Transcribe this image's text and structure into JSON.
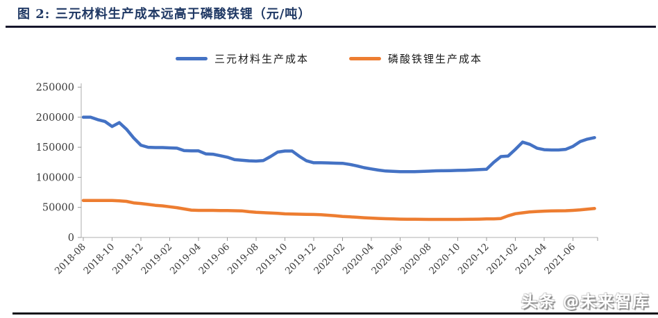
{
  "figure": {
    "title": "图 2: 三元材料生产成本远高于磷酸铁锂（元/吨）",
    "unit": "元/吨"
  },
  "watermark": {
    "text": "头条 @未来智库"
  },
  "colors": {
    "title": "#1F3864",
    "series_blue": "#4472C4",
    "series_orange": "#ED7D31",
    "axis": "#BFBFBF",
    "tick": "#999999",
    "tick_label": "#3a3a3a"
  },
  "chart_data": {
    "type": "line",
    "title": "图 2: 三元材料生产成本远高于磷酸铁锂（元/吨）",
    "xlabel": "",
    "ylabel": "",
    "unit": "元/吨",
    "grid": false,
    "legend_position": "top",
    "ylim": [
      0,
      250000
    ],
    "y_ticks": [
      0,
      50000,
      100000,
      150000,
      200000,
      250000
    ],
    "x_start": "2018-08",
    "x_end": "2021-07",
    "sampling": "semi-monthly",
    "x_tick_every_n_points": 4,
    "x_tick_labels": [
      "2018-08",
      "2018-10",
      "2018-12",
      "2019-02",
      "2019-04",
      "2019-06",
      "2019-08",
      "2019-10",
      "2019-12",
      "2020-02",
      "2020-04",
      "2020-06",
      "2020-08",
      "2020-10",
      "2020-12",
      "2021-02",
      "2021-04",
      "2021-06"
    ],
    "series": [
      {
        "name": "三元材料生产成本",
        "color": "#4472C4",
        "values": [
          200000,
          200000,
          196000,
          193000,
          184500,
          191000,
          180000,
          165500,
          153500,
          150000,
          149500,
          149500,
          149000,
          148500,
          144500,
          144000,
          144000,
          139000,
          138500,
          136000,
          133500,
          129500,
          128500,
          127500,
          127000,
          128000,
          134500,
          142000,
          143800,
          143800,
          135000,
          127500,
          124300,
          124300,
          124000,
          123500,
          123300,
          121500,
          119000,
          116000,
          114000,
          112000,
          110500,
          110000,
          109500,
          109300,
          109300,
          109800,
          110300,
          110800,
          111000,
          111200,
          111500,
          111800,
          112200,
          112800,
          113500,
          125000,
          134500,
          135500,
          146500,
          158500,
          155000,
          148500,
          146000,
          145500,
          145500,
          146500,
          151500,
          159500,
          163500,
          166000
        ]
      },
      {
        "name": "磷酸铁锂生产成本",
        "color": "#ED7D31",
        "values": [
          61500,
          61500,
          61500,
          61500,
          61500,
          61000,
          60000,
          57500,
          56500,
          55000,
          53500,
          52500,
          51000,
          49500,
          47500,
          45500,
          45000,
          45000,
          45000,
          44800,
          44700,
          44500,
          44200,
          42800,
          41800,
          41200,
          40700,
          40200,
          39300,
          39000,
          38700,
          38400,
          38200,
          37800,
          37000,
          36000,
          35000,
          34300,
          33600,
          32800,
          32200,
          31600,
          31200,
          30800,
          30500,
          30300,
          30200,
          30100,
          30000,
          30000,
          30000,
          30000,
          30000,
          30100,
          30300,
          30500,
          30800,
          31000,
          31500,
          36000,
          39500,
          41000,
          42500,
          43200,
          43800,
          44100,
          44300,
          44500,
          45000,
          45800,
          47000,
          48200
        ]
      }
    ]
  }
}
